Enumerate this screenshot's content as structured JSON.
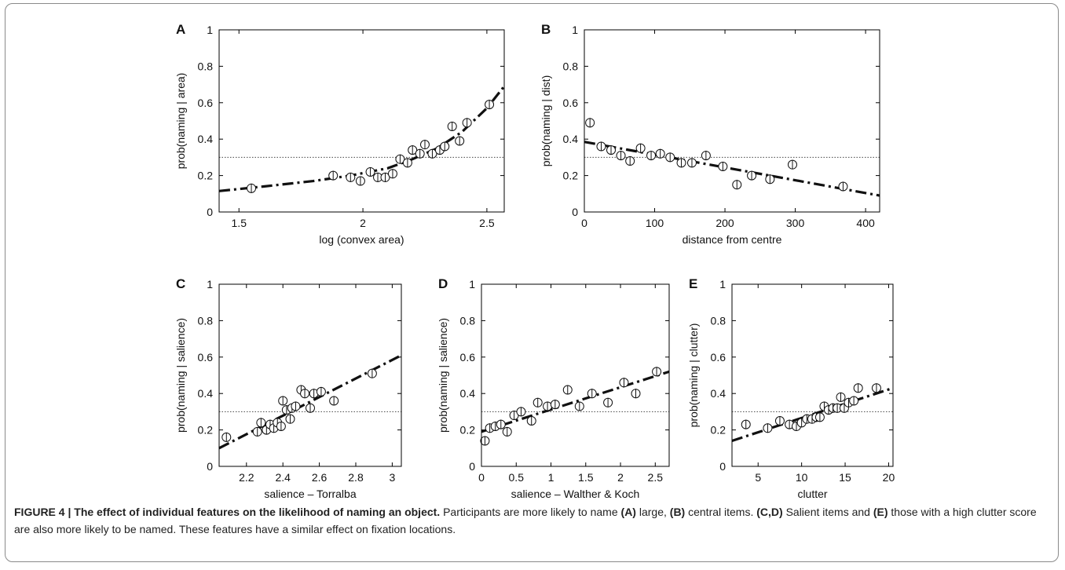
{
  "chart_data": [
    {
      "panel": "A",
      "type": "scatter",
      "xlabel": "log (convex area)",
      "ylabel": "prob(naming | area)",
      "xlim": [
        1.42,
        2.57
      ],
      "ylim": [
        0,
        1
      ],
      "xticks": [
        1.5,
        2,
        2.5
      ],
      "xtick_labels": [
        "1.5",
        "2",
        "2.5"
      ],
      "yticks": [
        0,
        0.2,
        0.4,
        0.6,
        0.8,
        1
      ],
      "ytick_labels": [
        "0",
        "0.2",
        "0.4",
        "0.6",
        "0.8",
        "1"
      ],
      "reference_y": 0.3,
      "points": [
        {
          "x": 1.55,
          "y": 0.13
        },
        {
          "x": 1.88,
          "y": 0.2
        },
        {
          "x": 1.95,
          "y": 0.19
        },
        {
          "x": 1.99,
          "y": 0.17
        },
        {
          "x": 2.03,
          "y": 0.22
        },
        {
          "x": 2.06,
          "y": 0.19
        },
        {
          "x": 2.09,
          "y": 0.19
        },
        {
          "x": 2.12,
          "y": 0.21
        },
        {
          "x": 2.15,
          "y": 0.29
        },
        {
          "x": 2.18,
          "y": 0.27
        },
        {
          "x": 2.2,
          "y": 0.34
        },
        {
          "x": 2.23,
          "y": 0.32
        },
        {
          "x": 2.25,
          "y": 0.37
        },
        {
          "x": 2.28,
          "y": 0.32
        },
        {
          "x": 2.31,
          "y": 0.34
        },
        {
          "x": 2.33,
          "y": 0.36
        },
        {
          "x": 2.36,
          "y": 0.47
        },
        {
          "x": 2.39,
          "y": 0.39
        },
        {
          "x": 2.42,
          "y": 0.49
        },
        {
          "x": 2.51,
          "y": 0.59
        }
      ],
      "fit_curve": {
        "x": [
          1.42,
          1.6,
          1.8,
          1.95,
          2.1,
          2.2,
          2.3,
          2.4,
          2.5,
          2.57
        ],
        "y": [
          0.115,
          0.14,
          0.17,
          0.2,
          0.24,
          0.29,
          0.35,
          0.44,
          0.57,
          0.69
        ]
      }
    },
    {
      "panel": "B",
      "type": "scatter",
      "xlabel": "distance from centre",
      "ylabel": "prob(naming | dist)",
      "xlim": [
        0,
        420
      ],
      "ylim": [
        0,
        1
      ],
      "xticks": [
        0,
        100,
        200,
        300,
        400
      ],
      "xtick_labels": [
        "0",
        "100",
        "200",
        "300",
        "400"
      ],
      "yticks": [
        0,
        0.2,
        0.4,
        0.6,
        0.8,
        1
      ],
      "ytick_labels": [
        "0",
        "0.2",
        "0.4",
        "0.6",
        "0.8",
        "1"
      ],
      "reference_y": 0.3,
      "points": [
        {
          "x": 8,
          "y": 0.49
        },
        {
          "x": 24,
          "y": 0.36
        },
        {
          "x": 38,
          "y": 0.34
        },
        {
          "x": 52,
          "y": 0.31
        },
        {
          "x": 65,
          "y": 0.28
        },
        {
          "x": 80,
          "y": 0.35
        },
        {
          "x": 95,
          "y": 0.31
        },
        {
          "x": 108,
          "y": 0.32
        },
        {
          "x": 122,
          "y": 0.3
        },
        {
          "x": 138,
          "y": 0.27
        },
        {
          "x": 153,
          "y": 0.27
        },
        {
          "x": 173,
          "y": 0.31
        },
        {
          "x": 197,
          "y": 0.25
        },
        {
          "x": 217,
          "y": 0.15
        },
        {
          "x": 238,
          "y": 0.2
        },
        {
          "x": 264,
          "y": 0.18
        },
        {
          "x": 296,
          "y": 0.26
        },
        {
          "x": 368,
          "y": 0.14
        }
      ],
      "fit_line": {
        "x": [
          0,
          420
        ],
        "y": [
          0.385,
          0.09
        ]
      }
    },
    {
      "panel": "C",
      "type": "scatter",
      "xlabel": "salience – Torralba",
      "ylabel": "prob(naming | salience)",
      "xlim": [
        2.05,
        3.05
      ],
      "ylim": [
        0,
        1
      ],
      "xticks": [
        2.2,
        2.4,
        2.6,
        2.8,
        3
      ],
      "xtick_labels": [
        "2.2",
        "2.4",
        "2.6",
        "2.8",
        "3"
      ],
      "yticks": [
        0,
        0.2,
        0.4,
        0.6,
        0.8,
        1
      ],
      "ytick_labels": [
        "0",
        "0.2",
        "0.4",
        "0.6",
        "0.8",
        "1"
      ],
      "reference_y": 0.3,
      "points": [
        {
          "x": 2.09,
          "y": 0.16
        },
        {
          "x": 2.26,
          "y": 0.19
        },
        {
          "x": 2.28,
          "y": 0.24
        },
        {
          "x": 2.31,
          "y": 0.2
        },
        {
          "x": 2.33,
          "y": 0.23
        },
        {
          "x": 2.35,
          "y": 0.21
        },
        {
          "x": 2.37,
          "y": 0.24
        },
        {
          "x": 2.39,
          "y": 0.22
        },
        {
          "x": 2.4,
          "y": 0.36
        },
        {
          "x": 2.42,
          "y": 0.31
        },
        {
          "x": 2.44,
          "y": 0.26
        },
        {
          "x": 2.45,
          "y": 0.32
        },
        {
          "x": 2.47,
          "y": 0.33
        },
        {
          "x": 2.5,
          "y": 0.42
        },
        {
          "x": 2.52,
          "y": 0.4
        },
        {
          "x": 2.55,
          "y": 0.32
        },
        {
          "x": 2.57,
          "y": 0.4
        },
        {
          "x": 2.61,
          "y": 0.41
        },
        {
          "x": 2.68,
          "y": 0.36
        },
        {
          "x": 2.89,
          "y": 0.51
        }
      ],
      "fit_line": {
        "x": [
          2.05,
          3.05
        ],
        "y": [
          0.1,
          0.61
        ]
      }
    },
    {
      "panel": "D",
      "type": "scatter",
      "xlabel": "salience – Walther & Koch",
      "ylabel": "prob(naming | salience)",
      "xlim": [
        0,
        2.7
      ],
      "ylim": [
        0,
        1
      ],
      "xticks": [
        0,
        0.5,
        1,
        1.5,
        2,
        2.5
      ],
      "xtick_labels": [
        "0",
        "0.5",
        "1",
        "1.5",
        "2",
        "2.5"
      ],
      "yticks": [
        0,
        0.2,
        0.4,
        0.6,
        0.8,
        1
      ],
      "ytick_labels": [
        "0",
        "0.2",
        "0.4",
        "0.6",
        "0.8",
        "1"
      ],
      "reference_y": 0.3,
      "points": [
        {
          "x": 0.05,
          "y": 0.14
        },
        {
          "x": 0.12,
          "y": 0.21
        },
        {
          "x": 0.2,
          "y": 0.22
        },
        {
          "x": 0.28,
          "y": 0.23
        },
        {
          "x": 0.37,
          "y": 0.19
        },
        {
          "x": 0.47,
          "y": 0.28
        },
        {
          "x": 0.57,
          "y": 0.3
        },
        {
          "x": 0.72,
          "y": 0.25
        },
        {
          "x": 0.81,
          "y": 0.35
        },
        {
          "x": 0.95,
          "y": 0.33
        },
        {
          "x": 1.06,
          "y": 0.34
        },
        {
          "x": 1.24,
          "y": 0.42
        },
        {
          "x": 1.41,
          "y": 0.33
        },
        {
          "x": 1.59,
          "y": 0.4
        },
        {
          "x": 1.82,
          "y": 0.35
        },
        {
          "x": 2.05,
          "y": 0.46
        },
        {
          "x": 2.22,
          "y": 0.4
        },
        {
          "x": 2.52,
          "y": 0.52
        }
      ],
      "fit_line": {
        "x": [
          0,
          2.7
        ],
        "y": [
          0.19,
          0.52
        ]
      }
    },
    {
      "panel": "E",
      "type": "scatter",
      "xlabel": "clutter",
      "ylabel": "prob(naming | clutter)",
      "xlim": [
        2,
        20.5
      ],
      "ylim": [
        0,
        1
      ],
      "xticks": [
        5,
        10,
        15,
        20
      ],
      "xtick_labels": [
        "5",
        "10",
        "15",
        "20"
      ],
      "yticks": [
        0,
        0.2,
        0.4,
        0.6,
        0.8,
        1
      ],
      "ytick_labels": [
        "0",
        "0.2",
        "0.4",
        "0.6",
        "0.8",
        "1"
      ],
      "reference_y": 0.3,
      "points": [
        {
          "x": 3.6,
          "y": 0.23
        },
        {
          "x": 6.1,
          "y": 0.21
        },
        {
          "x": 7.5,
          "y": 0.25
        },
        {
          "x": 8.6,
          "y": 0.23
        },
        {
          "x": 9.4,
          "y": 0.22
        },
        {
          "x": 10.0,
          "y": 0.24
        },
        {
          "x": 10.6,
          "y": 0.26
        },
        {
          "x": 11.2,
          "y": 0.26
        },
        {
          "x": 11.7,
          "y": 0.27
        },
        {
          "x": 12.1,
          "y": 0.27
        },
        {
          "x": 12.6,
          "y": 0.33
        },
        {
          "x": 13.1,
          "y": 0.31
        },
        {
          "x": 13.6,
          "y": 0.32
        },
        {
          "x": 14.1,
          "y": 0.32
        },
        {
          "x": 14.5,
          "y": 0.38
        },
        {
          "x": 14.9,
          "y": 0.32
        },
        {
          "x": 15.4,
          "y": 0.35
        },
        {
          "x": 16.0,
          "y": 0.36
        },
        {
          "x": 16.5,
          "y": 0.43
        },
        {
          "x": 18.6,
          "y": 0.43
        }
      ],
      "fit_line": {
        "x": [
          2,
          20.5
        ],
        "y": [
          0.14,
          0.43
        ]
      }
    }
  ],
  "caption": {
    "figure_label": "FIGURE 4 | The effect of individual features on the likelihood of naming an object.",
    "part1": " Participants are more likely to name ",
    "ref_a": "(A)",
    "part2": " large, ",
    "ref_b": "(B)",
    "part3": " central items. ",
    "ref_cd": "(C,D)",
    "part4": " Salient items and ",
    "ref_e": "(E)",
    "part5": " those with a high clutter score are also more likely to be named. These features have a similar effect on fixation locations."
  }
}
